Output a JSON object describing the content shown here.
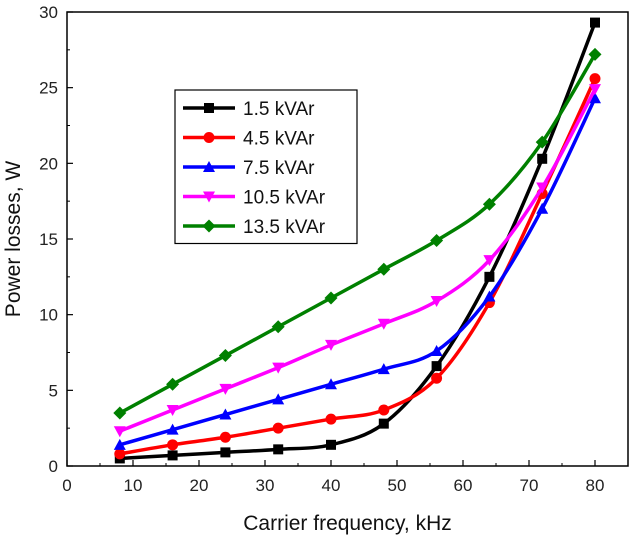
{
  "chart_data": {
    "type": "line",
    "title": "",
    "xlabel": "Carrier frequency, kHz",
    "ylabel": "Power losses, W",
    "xlim": [
      0,
      85
    ],
    "ylim": [
      0,
      30
    ],
    "x_ticks": [
      "0",
      "10",
      "20",
      "30",
      "40",
      "50",
      "60",
      "70",
      "80"
    ],
    "y_ticks": [
      "0",
      "5",
      "10",
      "15",
      "20",
      "25",
      "30"
    ],
    "legend_position": "upper-left",
    "x": [
      8,
      16,
      24,
      32,
      40,
      48,
      56,
      64,
      72,
      80
    ],
    "series": [
      {
        "name": "1.5 kVAr",
        "color": "#000000",
        "marker": "square",
        "values": [
          0.5,
          0.7,
          0.9,
          1.1,
          1.4,
          2.8,
          6.6,
          12.5,
          20.3,
          29.3
        ]
      },
      {
        "name": "4.5 kVAr",
        "color": "#ff0000",
        "marker": "circle",
        "values": [
          0.8,
          1.4,
          1.9,
          2.5,
          3.1,
          3.7,
          5.8,
          10.8,
          18.0,
          25.6
        ]
      },
      {
        "name": "7.5 kVAr",
        "color": "#0000ff",
        "marker": "triangle-up",
        "values": [
          1.4,
          2.4,
          3.4,
          4.4,
          5.4,
          6.4,
          7.6,
          11.2,
          17.0,
          24.3
        ]
      },
      {
        "name": "10.5 kVAr",
        "color": "#ff00ff",
        "marker": "triangle-down",
        "values": [
          2.3,
          3.7,
          5.1,
          6.5,
          8.0,
          9.4,
          10.9,
          13.6,
          18.4,
          24.9
        ]
      },
      {
        "name": "13.5 kVAr",
        "color": "#008000",
        "marker": "diamond",
        "values": [
          3.5,
          5.4,
          7.3,
          9.2,
          11.1,
          13.0,
          14.9,
          17.3,
          21.4,
          27.2
        ]
      }
    ]
  }
}
